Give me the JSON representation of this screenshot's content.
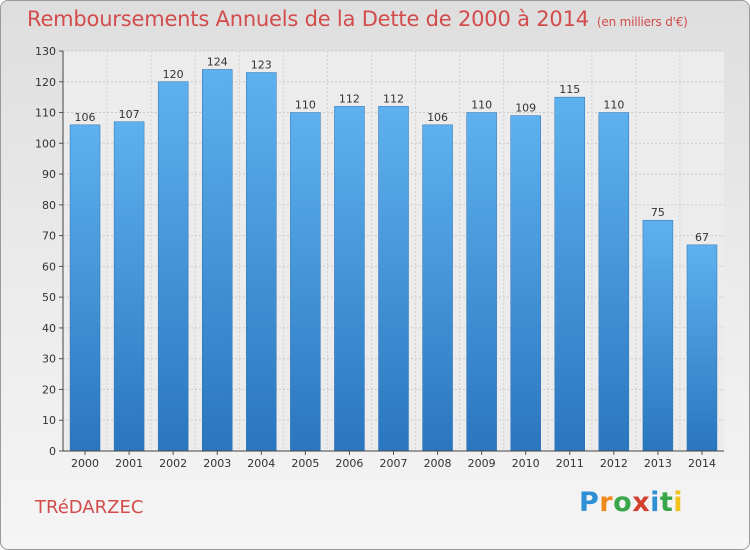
{
  "chart_data": {
    "type": "bar",
    "title": "Remboursements Annuels de la Dette de 2000 à 2014",
    "unit_note": "(en milliers d'€)",
    "categories": [
      "2000",
      "2001",
      "2002",
      "2003",
      "2004",
      "2005",
      "2006",
      "2007",
      "2008",
      "2009",
      "2010",
      "2011",
      "2012",
      "2013",
      "2014"
    ],
    "values": [
      106,
      107,
      120,
      124,
      123,
      110,
      112,
      112,
      106,
      110,
      109,
      115,
      110,
      75,
      67
    ],
    "yticks": [
      0,
      10,
      20,
      30,
      40,
      50,
      60,
      70,
      80,
      90,
      100,
      110,
      120,
      130
    ],
    "ylim": [
      0,
      130
    ],
    "grid": true,
    "bar_color": "#3a8fd6"
  },
  "commune": "TRéDARZEC",
  "brand": {
    "letters": [
      "P",
      "r",
      "o",
      "x",
      "i",
      "t",
      "i"
    ],
    "colors": [
      "#2e8fd4",
      "#f08a1c",
      "#3aa64a",
      "#d4402e",
      "#2e8fd4",
      "#3aa64a",
      "#f0c21c"
    ]
  }
}
